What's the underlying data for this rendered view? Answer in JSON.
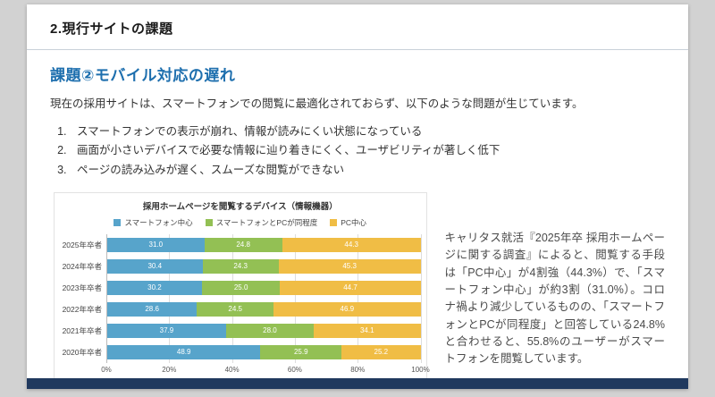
{
  "slide": {
    "page_title": "2.現行サイトの課題",
    "section_title": "課題②モバイル対応の遅れ",
    "lead": "現在の採用サイトは、スマートフォンでの閲覧に最適化されておらず、以下のような問題が生じています。",
    "issues": [
      "スマートフォンでの表示が崩れ、情報が読みにくい状態になっている",
      "画面が小さいデバイスで必要な情報に辿り着きにくく、ユーザビリティが著しく低下",
      "ページの読み込みが遅く、スムーズな閲覧ができない"
    ],
    "note": "キャリタス就活『2025年卒 採用ホームページに関する調査』によると、閲覧する手段は「PC中心」が4割強（44.3%）で、「スマートフォン中心」が約3割（31.0%）。コロナ禍より減少しているものの、「スマートフォンとPCが同程度」と回答している24.8%と合わせると、55.8%のユーザーがスマートフォンを閲覧しています。"
  },
  "chart_data": {
    "type": "bar",
    "orientation": "horizontal",
    "stacked": true,
    "title": "採用ホームページを閲覧するデバイス（情報機器）",
    "categories": [
      "2025年卒者",
      "2024年卒者",
      "2023年卒者",
      "2022年卒者",
      "2021年卒者",
      "2020年卒者"
    ],
    "series": [
      {
        "name": "スマートフォン中心",
        "color": "#57a4cb",
        "values": [
          31.0,
          30.4,
          30.2,
          28.6,
          37.9,
          48.9
        ]
      },
      {
        "name": "スマートフォンとPCが同程度",
        "color": "#93c054",
        "values": [
          24.8,
          24.3,
          25.0,
          24.5,
          28.0,
          25.9
        ]
      },
      {
        "name": "PC中心",
        "color": "#f0bd45",
        "values": [
          44.3,
          45.3,
          44.7,
          46.9,
          34.1,
          25.2
        ]
      }
    ],
    "x_ticks": [
      "0%",
      "20%",
      "40%",
      "60%",
      "80%",
      "100%"
    ],
    "xlim": [
      0,
      100
    ],
    "legend_position": "top"
  },
  "colors": {
    "accent_blue": "#1e6fae",
    "footer_bar": "#20395e",
    "canvas_bg": "#d2d2d2"
  }
}
